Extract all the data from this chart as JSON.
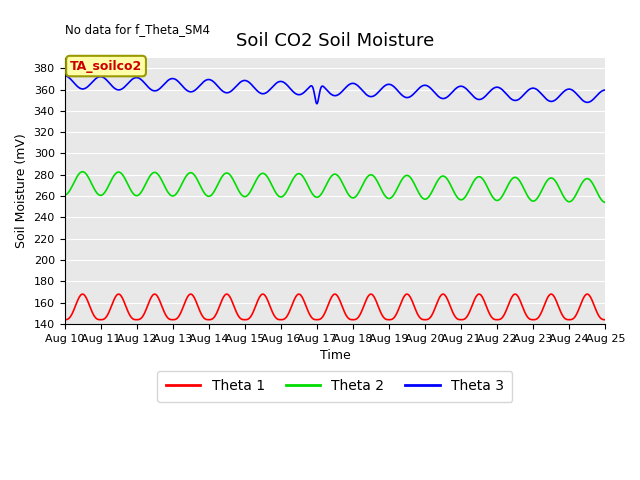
{
  "title": "Soil CO2 Soil Moisture",
  "no_data_text": "No data for f_Theta_SM4",
  "annotation_text": "TA_soilco2",
  "xlabel": "Time",
  "ylabel": "Soil Moisture (mV)",
  "ylim": [
    140,
    390
  ],
  "yticks": [
    140,
    160,
    180,
    200,
    220,
    240,
    260,
    280,
    300,
    320,
    340,
    360,
    380
  ],
  "xtick_labels": [
    "Aug 10",
    "Aug 11",
    "Aug 12",
    "Aug 13",
    "Aug 14",
    "Aug 15",
    "Aug 16",
    "Aug 17",
    "Aug 18",
    "Aug 19",
    "Aug 20",
    "Aug 21",
    "Aug 22",
    "Aug 23",
    "Aug 24",
    "Aug 25"
  ],
  "line_colors": {
    "theta1": "#ff0000",
    "theta2": "#00dd00",
    "theta3": "#0000ff"
  },
  "legend_labels": [
    "Theta 1",
    "Theta 2",
    "Theta 3"
  ],
  "bg_color": "#e8e8e8",
  "title_fontsize": 13,
  "axis_label_fontsize": 9,
  "tick_fontsize": 8
}
